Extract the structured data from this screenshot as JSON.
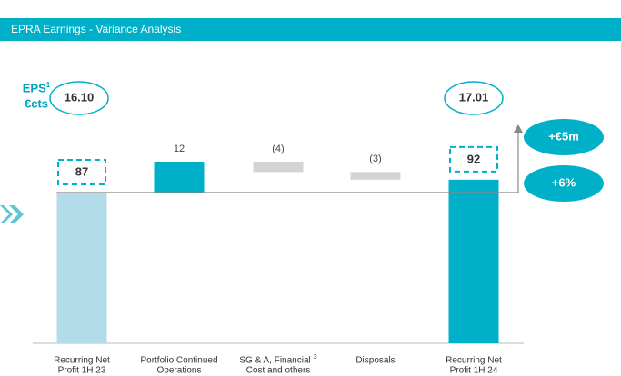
{
  "chart_data": {
    "type": "waterfall",
    "title": "EPRA Earnings - Variance Analysis",
    "categories": [
      [
        "Recurring Net",
        "Profit 1H 23"
      ],
      [
        "Portfolio Continued",
        "Operations"
      ],
      [
        "SG & A, Financial",
        "Cost and others"
      ],
      [
        "Disposals"
      ],
      [
        "Recurring Net",
        "Profit 1H 24"
      ]
    ],
    "category_footnotes": [
      null,
      null,
      "3",
      null,
      null
    ],
    "values": [
      87,
      12,
      -4,
      -3,
      92
    ],
    "value_labels": [
      "87",
      "12",
      "(4)",
      "(3)",
      "92"
    ],
    "kinds": [
      "total",
      "delta",
      "delta",
      "delta",
      "total"
    ],
    "colors": {
      "start": "#b3dcea",
      "increase": "#00b0c8",
      "decrease": "#d4d4d4",
      "end": "#00b0c8"
    },
    "eps": {
      "label": "EPS",
      "footnote": "1",
      "unit": "€cts",
      "values": [
        "16.10",
        "17.01"
      ]
    },
    "change": [
      "+€5m",
      "+6%"
    ]
  }
}
